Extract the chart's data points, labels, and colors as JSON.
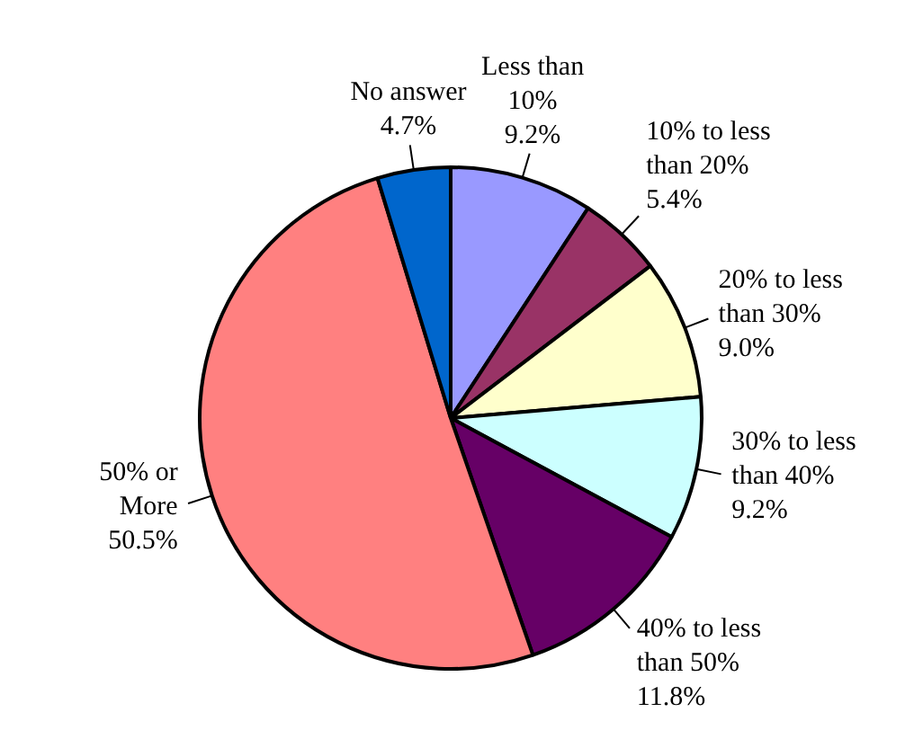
{
  "chart_data": {
    "type": "pie",
    "categories": [
      "Less than 10%",
      "10% to less than 20%",
      "20% to less than 30%",
      "30% to less than 40%",
      "40% to less than 50%",
      "50% or More",
      "No answer"
    ],
    "values": [
      9.2,
      5.4,
      9.0,
      9.2,
      11.8,
      50.5,
      4.7
    ],
    "value_labels": [
      "9.2%",
      "5.4%",
      "9.0%",
      "9.2%",
      "11.8%",
      "50.5%",
      "4.7%"
    ],
    "colors": [
      "#9999ff",
      "#993366",
      "#ffffcc",
      "#ccffff",
      "#660066",
      "#ff8080",
      "#0066cc"
    ]
  }
}
